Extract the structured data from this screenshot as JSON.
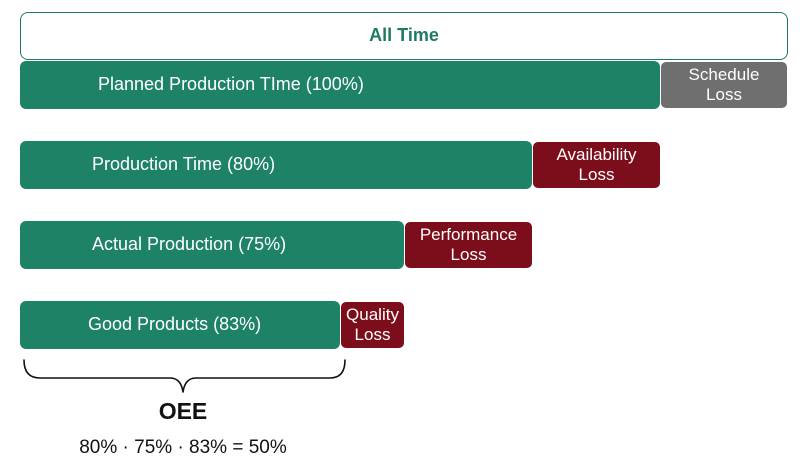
{
  "all_time": {
    "label": "All Time"
  },
  "levels": [
    {
      "name": "planned",
      "bar_label": "Planned Production TIme (100%)",
      "loss_label_1": "Schedule",
      "loss_label_2": "Loss",
      "loss_color": "#6f6f6f"
    },
    {
      "name": "production",
      "bar_label": "Production Time (80%)",
      "loss_label_1": "Availability",
      "loss_label_2": "Loss",
      "loss_color": "#7c0e1c"
    },
    {
      "name": "actual",
      "bar_label": "Actual Production (75%)",
      "loss_label_1": "Performance",
      "loss_label_2": "Loss",
      "loss_color": "#7c0e1c"
    },
    {
      "name": "good",
      "bar_label": "Good Products (83%)",
      "loss_label_1": "Quality",
      "loss_label_2": "Loss",
      "loss_color": "#7c0e1c"
    }
  ],
  "oee": {
    "title": "OEE",
    "formula": "80% · 75% · 83% = 50%"
  },
  "colors": {
    "bar_green": "#1e8366",
    "outline_green": "#1e7b63",
    "schedule_gray": "#6f6f6f",
    "loss_maroon": "#7c0e1c"
  }
}
